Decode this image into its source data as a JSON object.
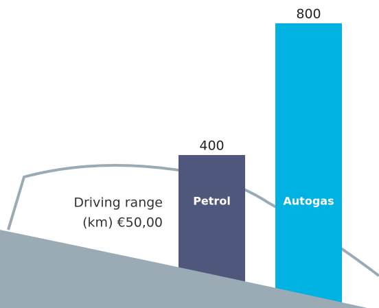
{
  "chart_data": {
    "type": "bar",
    "description": [
      "Driving range",
      "(km) €50,00"
    ],
    "categories": [
      "Petrol",
      "Autogas"
    ],
    "values": [
      400,
      800
    ],
    "colors": [
      "#50577d",
      "#00b2e2"
    ],
    "ylim": [
      0,
      800
    ]
  }
}
